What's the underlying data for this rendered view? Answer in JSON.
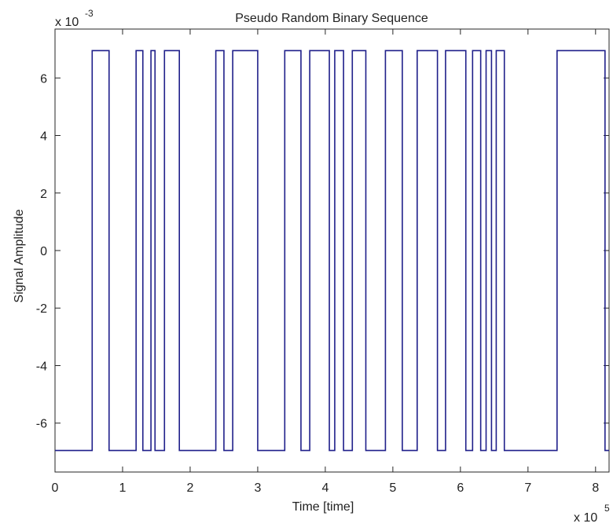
{
  "chart_data": {
    "type": "line",
    "step": true,
    "title": "Pseudo Random Binary Sequence",
    "xlabel": "Time [time]",
    "ylabel": "Signal Amplitude",
    "x_multiplier": {
      "base": "x 10",
      "exponent": "5"
    },
    "y_multiplier": {
      "base": "x 10",
      "exponent": "-3"
    },
    "xlim": [
      0,
      8.2
    ],
    "ylim": [
      -7.7,
      7.7
    ],
    "xticks": [
      0,
      1,
      2,
      3,
      4,
      5,
      6,
      7,
      8
    ],
    "xtick_labels": [
      "0",
      "1",
      "2",
      "3",
      "4",
      "5",
      "6",
      "7",
      "8"
    ],
    "yticks": [
      -6,
      -4,
      -2,
      0,
      2,
      4,
      6
    ],
    "ytick_labels": [
      "-6",
      "-4",
      "-2",
      "0",
      "2",
      "4",
      "6"
    ],
    "grid": false,
    "line_color": "#1f1f8a",
    "levels": {
      "low": -6.95,
      "high": 6.95
    },
    "series": [
      {
        "initial_level": "low",
        "transitions": [
          0.55,
          0.8,
          1.2,
          1.3,
          1.42,
          1.48,
          1.62,
          1.84,
          2.38,
          2.5,
          2.63,
          3.0,
          3.4,
          3.64,
          3.77,
          4.06,
          4.14,
          4.27,
          4.4,
          4.6,
          4.89,
          5.14,
          5.36,
          5.66,
          5.78,
          6.08,
          6.18,
          6.3,
          6.38,
          6.46,
          6.53,
          6.65,
          7.43,
          8.14
        ],
        "x_end": 8.2
      }
    ]
  }
}
